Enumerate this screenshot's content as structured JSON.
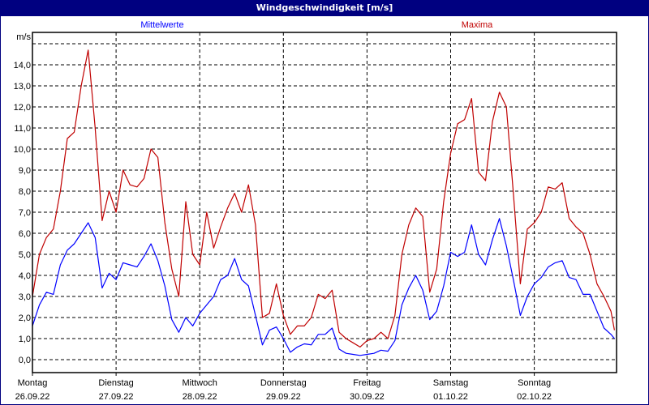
{
  "window": {
    "title": "Windgeschwindigkeit [m/s]"
  },
  "chart_data": {
    "type": "line",
    "title": "Windgeschwindigkeit [m/s]",
    "ylabel": "m/s",
    "ylim": [
      -0.6,
      15.5
    ],
    "yticks": [
      "0,0",
      "1,0",
      "2,0",
      "3,0",
      "4,0",
      "5,0",
      "6,0",
      "7,0",
      "8,0",
      "9,0",
      "10,0",
      "11,0",
      "12,0",
      "13,0",
      "14,0"
    ],
    "grid": true,
    "legend_placement": "top",
    "days": [
      {
        "name": "Montag",
        "date": "26.09.22"
      },
      {
        "name": "Dienstag",
        "date": "27.09.22"
      },
      {
        "name": "Mittwoch",
        "date": "28.09.22"
      },
      {
        "name": "Donnerstag",
        "date": "29.09.22"
      },
      {
        "name": "Freitag",
        "date": "30.09.22"
      },
      {
        "name": "Samstag",
        "date": "01.10.22"
      },
      {
        "name": "Sonntag",
        "date": "02.10.22"
      }
    ],
    "x": [
      "26.09.22 00:00",
      "26.09.22 02:00",
      "26.09.22 04:00",
      "26.09.22 06:00",
      "26.09.22 08:00",
      "26.09.22 10:00",
      "26.09.22 12:00",
      "26.09.22 14:00",
      "26.09.22 16:00",
      "26.09.22 18:00",
      "26.09.22 20:00",
      "26.09.22 22:00",
      "27.09.22 00:00",
      "27.09.22 02:00",
      "27.09.22 04:00",
      "27.09.22 06:00",
      "27.09.22 08:00",
      "27.09.22 10:00",
      "27.09.22 12:00",
      "27.09.22 14:00",
      "27.09.22 16:00",
      "27.09.22 18:00",
      "27.09.22 20:00",
      "27.09.22 22:00",
      "28.09.22 00:00",
      "28.09.22 02:00",
      "28.09.22 04:00",
      "28.09.22 06:00",
      "28.09.22 08:00",
      "28.09.22 10:00",
      "28.09.22 12:00",
      "28.09.22 14:00",
      "28.09.22 16:00",
      "28.09.22 18:00",
      "28.09.22 20:00",
      "28.09.22 22:00",
      "29.09.22 00:00",
      "29.09.22 02:00",
      "29.09.22 04:00",
      "29.09.22 06:00",
      "29.09.22 08:00",
      "29.09.22 10:00",
      "29.09.22 12:00",
      "29.09.22 14:00",
      "29.09.22 16:00",
      "29.09.22 18:00",
      "29.09.22 20:00",
      "29.09.22 22:00",
      "30.09.22 00:00",
      "30.09.22 02:00",
      "30.09.22 04:00",
      "30.09.22 06:00",
      "30.09.22 08:00",
      "30.09.22 10:00",
      "30.09.22 12:00",
      "30.09.22 14:00",
      "30.09.22 16:00",
      "30.09.22 18:00",
      "30.09.22 20:00",
      "30.09.22 22:00",
      "01.10.22 00:00",
      "01.10.22 02:00",
      "01.10.22 04:00",
      "01.10.22 06:00",
      "01.10.22 08:00",
      "01.10.22 10:00",
      "01.10.22 12:00",
      "01.10.22 14:00",
      "01.10.22 16:00",
      "01.10.22 18:00",
      "01.10.22 20:00",
      "01.10.22 22:00",
      "02.10.22 00:00",
      "02.10.22 02:00",
      "02.10.22 04:00",
      "02.10.22 06:00",
      "02.10.22 08:00",
      "02.10.22 10:00",
      "02.10.22 12:00",
      "02.10.22 14:00",
      "02.10.22 16:00",
      "02.10.22 18:00",
      "02.10.22 20:00",
      "02.10.22 22:00",
      "02.10.22 23:00"
    ],
    "series": [
      {
        "name": "Mittelwerte",
        "color": "#0000ff",
        "values": [
          1.6,
          2.6,
          3.2,
          3.1,
          4.5,
          5.2,
          5.5,
          6.0,
          6.5,
          5.8,
          3.4,
          4.1,
          3.8,
          4.6,
          4.5,
          4.4,
          4.9,
          5.5,
          4.7,
          3.5,
          1.9,
          1.3,
          2.0,
          1.6,
          2.2,
          2.6,
          3.0,
          3.8,
          4.0,
          4.8,
          3.8,
          3.5,
          2.1,
          0.7,
          1.4,
          1.55,
          1.0,
          0.35,
          0.6,
          0.75,
          0.7,
          1.2,
          1.2,
          1.5,
          0.5,
          0.3,
          0.25,
          0.2,
          0.25,
          0.3,
          0.45,
          0.4,
          0.9,
          2.6,
          3.4,
          4.0,
          3.3,
          1.9,
          2.3,
          3.5,
          5.1,
          4.9,
          5.1,
          6.4,
          5.0,
          4.5,
          5.7,
          6.7,
          5.4,
          3.8,
          2.1,
          3.0,
          3.6,
          3.9,
          4.4,
          4.6,
          4.7,
          3.9,
          3.8,
          3.1,
          3.1,
          2.3,
          1.5,
          1.2,
          1.0
        ]
      },
      {
        "name": "Maxima",
        "color": "#c00000",
        "values": [
          3.0,
          5.0,
          5.8,
          6.2,
          8.0,
          10.5,
          10.8,
          13.0,
          14.7,
          11.0,
          6.6,
          8.0,
          7.0,
          9.0,
          8.3,
          8.2,
          8.6,
          10.0,
          9.6,
          6.5,
          4.3,
          3.0,
          7.5,
          5.0,
          4.5,
          7.0,
          5.3,
          6.3,
          7.2,
          7.9,
          7.0,
          8.3,
          6.4,
          2.0,
          2.2,
          3.6,
          2.1,
          1.2,
          1.6,
          1.6,
          2.0,
          3.1,
          2.9,
          3.3,
          1.3,
          1.0,
          0.8,
          0.6,
          0.9,
          1.0,
          1.3,
          1.0,
          2.1,
          5.0,
          6.4,
          7.2,
          6.8,
          3.2,
          4.3,
          7.5,
          9.8,
          11.2,
          11.4,
          12.4,
          8.9,
          8.5,
          11.3,
          12.7,
          12.0,
          7.9,
          3.6,
          6.2,
          6.5,
          7.0,
          8.2,
          8.1,
          8.4,
          6.7,
          6.3,
          6.0,
          5.0,
          3.6,
          3.0,
          2.3,
          1.4
        ]
      }
    ]
  }
}
